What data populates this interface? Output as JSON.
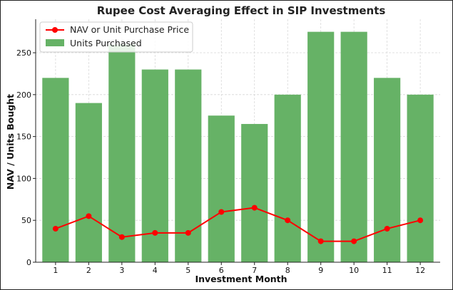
{
  "chart_data": {
    "type": "bar",
    "title": "Rupee Cost Averaging Effect in SIP Investments",
    "xlabel": "Investment Month",
    "ylabel": "NAV / Units Bought",
    "categories": [
      "1",
      "2",
      "3",
      "4",
      "5",
      "6",
      "7",
      "8",
      "9",
      "10",
      "11",
      "12"
    ],
    "ylim": [
      0,
      290
    ],
    "yticks": [
      0,
      50,
      100,
      150,
      200,
      250
    ],
    "grid": true,
    "legend_position": "top-left",
    "series": [
      {
        "name": "Units Purchased",
        "type": "bar",
        "color": "#66b266",
        "values": [
          220,
          190,
          260,
          230,
          230,
          175,
          165,
          200,
          275,
          275,
          220,
          200
        ]
      },
      {
        "name": "NAV or Unit Purchase Price",
        "type": "line",
        "color": "#ff0000",
        "values": [
          40,
          55,
          30,
          35,
          35,
          60,
          65,
          50,
          25,
          25,
          40,
          50
        ]
      }
    ]
  }
}
